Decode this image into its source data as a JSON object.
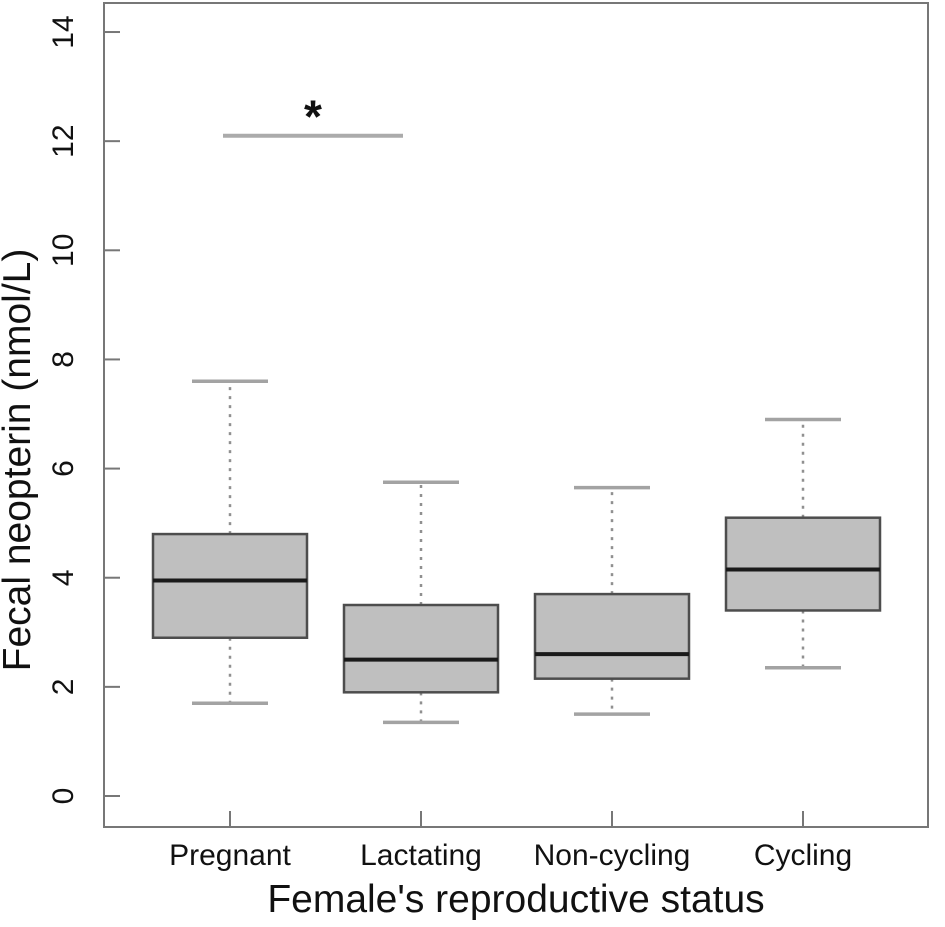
{
  "chart_data": {
    "type": "boxplot",
    "title": "",
    "xlabel": "Female's reproductive status",
    "ylabel": "Fecal neopterin (nmol/L)",
    "categories": [
      "Pregnant",
      "Lactating",
      "Non-cycling",
      "Cycling"
    ],
    "y_ticks": [
      0,
      2,
      4,
      6,
      8,
      10,
      12,
      14
    ],
    "ylim": [
      -0.57,
      14.53
    ],
    "grid": false,
    "legend": "none",
    "boxes": [
      {
        "category": "Pregnant",
        "lower_whisker": 1.7,
        "q1": 2.9,
        "median": 3.95,
        "q3": 4.8,
        "upper_whisker": 7.6
      },
      {
        "category": "Lactating",
        "lower_whisker": 1.35,
        "q1": 1.9,
        "median": 2.5,
        "q3": 3.5,
        "upper_whisker": 5.75
      },
      {
        "category": "Non-cycling",
        "lower_whisker": 1.5,
        "q1": 2.15,
        "median": 2.6,
        "q3": 3.7,
        "upper_whisker": 5.65
      },
      {
        "category": "Cycling",
        "lower_whisker": 2.35,
        "q1": 3.4,
        "median": 4.15,
        "q3": 5.1,
        "upper_whisker": 6.9
      }
    ],
    "significance": {
      "label": "*",
      "between": [
        "Pregnant",
        "Lactating"
      ],
      "y": 12.1
    },
    "colors": {
      "background": "#ffffff",
      "box_fill": "#bfbfbf",
      "box_border": "#4d4d4d",
      "median": "#1a1a1a",
      "whisker_dotted": "#909090",
      "whisker_cap": "#a3a3a3",
      "frame": "#777777",
      "significance_line": "#ababab",
      "text": "#111111"
    }
  }
}
